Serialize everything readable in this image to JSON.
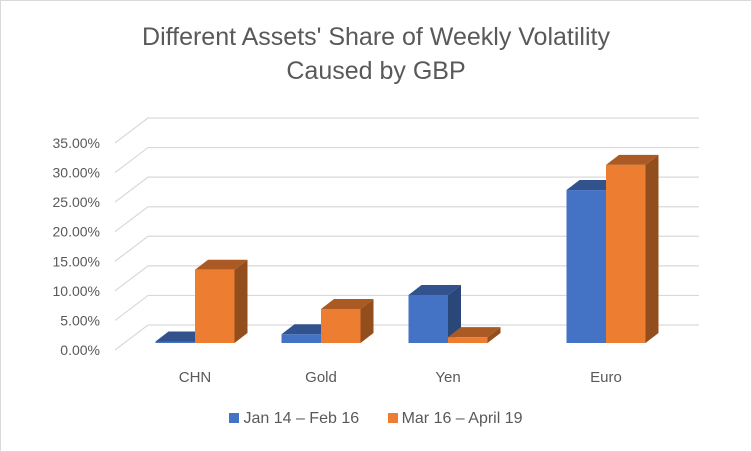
{
  "chart_data": {
    "type": "bar",
    "variant": "3d-clustered-column",
    "title": "Different Assets' Share of Weekly Volatility Caused by GBP",
    "title_lines": [
      "Different Assets' Share of Weekly Volatility",
      "Caused by GBP"
    ],
    "xlabel": "",
    "ylabel": "",
    "categories": [
      "CHN",
      "Gold",
      "Yen",
      "Euro"
    ],
    "series": [
      {
        "name": "Jan 14 – Feb 16",
        "color": "#4472c4",
        "values": [
          0.2,
          1.5,
          8.2,
          26.1
        ]
      },
      {
        "name": "Mar 16 – April 19",
        "color": "#ed7d31",
        "values": [
          12.5,
          5.8,
          1.0,
          30.4
        ]
      }
    ],
    "yticks": [
      "0.00%",
      "5.00%",
      "10.00%",
      "15.00%",
      "20.00%",
      "25.00%",
      "30.00%",
      "35.00%"
    ],
    "ylim": [
      0,
      35
    ],
    "grid": true,
    "legend_position": "bottom"
  }
}
